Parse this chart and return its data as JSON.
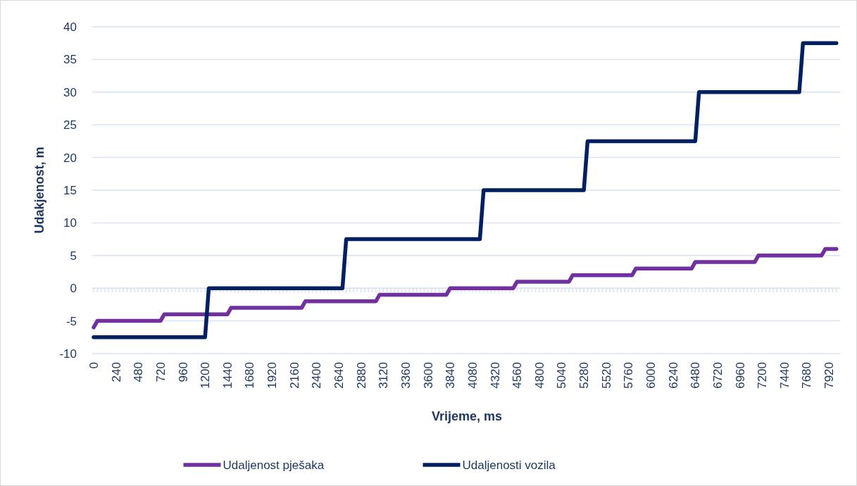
{
  "chart_data": {
    "type": "line",
    "xlabel": "Vrijeme, ms",
    "ylabel": "Udakjenost, m",
    "xlim": [
      0,
      8040
    ],
    "ylim": [
      -10,
      40
    ],
    "yticks": [
      -10,
      -5,
      0,
      5,
      10,
      15,
      20,
      25,
      30,
      35,
      40
    ],
    "xticks": [
      0,
      {
        "value": 40,
        "label": null
      },
      {
        "value": 80,
        "label": null
      },
      {
        "value": 120,
        "label": null
      },
      {
        "value": 160,
        "label": null
      },
      {
        "value": 200,
        "label": null
      },
      240,
      {
        "value": 280,
        "label": null
      },
      {
        "value": 320,
        "label": null
      },
      {
        "value": 360,
        "label": null
      },
      {
        "value": 400,
        "label": null
      },
      {
        "value": 440,
        "label": null
      },
      480,
      {
        "value": 520,
        "label": null
      },
      {
        "value": 560,
        "label": null
      },
      {
        "value": 600,
        "label": null
      },
      {
        "value": 640,
        "label": null
      },
      {
        "value": 680,
        "label": null
      },
      720,
      {
        "value": 760,
        "label": null
      },
      {
        "value": 800,
        "label": null
      },
      {
        "value": 840,
        "label": null
      },
      {
        "value": 880,
        "label": null
      },
      {
        "value": 920,
        "label": null
      },
      960,
      {
        "value": 1000,
        "label": null
      },
      {
        "value": 1040,
        "label": null
      },
      {
        "value": 1080,
        "label": null
      },
      {
        "value": 1120,
        "label": null
      },
      {
        "value": 1160,
        "label": null
      },
      1200,
      {
        "value": 1240,
        "label": null
      },
      {
        "value": 1280,
        "label": null
      },
      {
        "value": 1320,
        "label": null
      },
      {
        "value": 1360,
        "label": null
      },
      {
        "value": 1400,
        "label": null
      },
      1440,
      {
        "value": 1480,
        "label": null
      },
      {
        "value": 1520,
        "label": null
      },
      {
        "value": 1560,
        "label": null
      },
      {
        "value": 1600,
        "label": null
      },
      {
        "value": 1640,
        "label": null
      },
      1680,
      {
        "value": 1720,
        "label": null
      },
      {
        "value": 1760,
        "label": null
      },
      {
        "value": 1800,
        "label": null
      },
      {
        "value": 1840,
        "label": null
      },
      {
        "value": 1880,
        "label": null
      },
      1920,
      {
        "value": 1960,
        "label": null
      },
      {
        "value": 2000,
        "label": null
      },
      {
        "value": 2040,
        "label": null
      },
      {
        "value": 2080,
        "label": null
      },
      {
        "value": 2120,
        "label": null
      },
      2160,
      {
        "value": 2200,
        "label": null
      },
      {
        "value": 2240,
        "label": null
      },
      {
        "value": 2280,
        "label": null
      },
      {
        "value": 2320,
        "label": null
      },
      {
        "value": 2360,
        "label": null
      },
      2400,
      {
        "value": 2440,
        "label": null
      },
      {
        "value": 2480,
        "label": null
      },
      {
        "value": 2520,
        "label": null
      },
      {
        "value": 2560,
        "label": null
      },
      {
        "value": 2600,
        "label": null
      },
      2640,
      {
        "value": 2680,
        "label": null
      },
      {
        "value": 2720,
        "label": null
      },
      {
        "value": 2760,
        "label": null
      },
      {
        "value": 2800,
        "label": null
      },
      {
        "value": 2840,
        "label": null
      },
      2880,
      {
        "value": 2920,
        "label": null
      },
      {
        "value": 2960,
        "label": null
      },
      {
        "value": 3000,
        "label": null
      },
      {
        "value": 3040,
        "label": null
      },
      {
        "value": 3080,
        "label": null
      },
      3120,
      {
        "value": 3160,
        "label": null
      },
      {
        "value": 3200,
        "label": null
      },
      {
        "value": 3240,
        "label": null
      },
      {
        "value": 3280,
        "label": null
      },
      {
        "value": 3320,
        "label": null
      },
      3360,
      {
        "value": 3400,
        "label": null
      },
      {
        "value": 3440,
        "label": null
      },
      {
        "value": 3480,
        "label": null
      },
      {
        "value": 3520,
        "label": null
      },
      {
        "value": 3560,
        "label": null
      },
      3600,
      {
        "value": 3640,
        "label": null
      },
      {
        "value": 3680,
        "label": null
      },
      {
        "value": 3720,
        "label": null
      },
      {
        "value": 3760,
        "label": null
      },
      {
        "value": 3800,
        "label": null
      },
      3840,
      {
        "value": 3880,
        "label": null
      },
      {
        "value": 3920,
        "label": null
      },
      {
        "value": 3960,
        "label": null
      },
      {
        "value": 4000,
        "label": null
      },
      {
        "value": 4040,
        "label": null
      },
      4080,
      {
        "value": 4120,
        "label": null
      },
      {
        "value": 4160,
        "label": null
      },
      {
        "value": 4200,
        "label": null
      },
      {
        "value": 4240,
        "label": null
      },
      {
        "value": 4280,
        "label": null
      },
      4320,
      {
        "value": 4360,
        "label": null
      },
      {
        "value": 4400,
        "label": null
      },
      {
        "value": 4440,
        "label": null
      },
      {
        "value": 4480,
        "label": null
      },
      {
        "value": 4520,
        "label": null
      },
      4560,
      {
        "value": 4600,
        "label": null
      },
      {
        "value": 4640,
        "label": null
      },
      {
        "value": 4680,
        "label": null
      },
      {
        "value": 4720,
        "label": null
      },
      {
        "value": 4760,
        "label": null
      },
      4800,
      {
        "value": 4840,
        "label": null
      },
      {
        "value": 4880,
        "label": null
      },
      {
        "value": 4920,
        "label": null
      },
      {
        "value": 4960,
        "label": null
      },
      {
        "value": 5000,
        "label": null
      },
      5040,
      {
        "value": 5080,
        "label": null
      },
      {
        "value": 5120,
        "label": null
      },
      {
        "value": 5160,
        "label": null
      },
      {
        "value": 5200,
        "label": null
      },
      {
        "value": 5240,
        "label": null
      },
      5280,
      {
        "value": 5320,
        "label": null
      },
      {
        "value": 5360,
        "label": null
      },
      {
        "value": 5400,
        "label": null
      },
      {
        "value": 5440,
        "label": null
      },
      {
        "value": 5480,
        "label": null
      },
      5520,
      {
        "value": 5560,
        "label": null
      },
      {
        "value": 5600,
        "label": null
      },
      {
        "value": 5640,
        "label": null
      },
      {
        "value": 5680,
        "label": null
      },
      {
        "value": 5720,
        "label": null
      },
      5760,
      {
        "value": 5800,
        "label": null
      },
      {
        "value": 5840,
        "label": null
      },
      {
        "value": 5880,
        "label": null
      },
      {
        "value": 5920,
        "label": null
      },
      {
        "value": 5960,
        "label": null
      },
      6000,
      {
        "value": 6040,
        "label": null
      },
      {
        "value": 6080,
        "label": null
      },
      {
        "value": 6120,
        "label": null
      },
      {
        "value": 6160,
        "label": null
      },
      {
        "value": 6200,
        "label": null
      },
      6240,
      {
        "value": 6280,
        "label": null
      },
      {
        "value": 6320,
        "label": null
      },
      {
        "value": 6360,
        "label": null
      },
      {
        "value": 6400,
        "label": null
      },
      {
        "value": 6440,
        "label": null
      },
      6480,
      {
        "value": 6520,
        "label": null
      },
      {
        "value": 6560,
        "label": null
      },
      {
        "value": 6600,
        "label": null
      },
      {
        "value": 6640,
        "label": null
      },
      {
        "value": 6680,
        "label": null
      },
      6720,
      {
        "value": 6760,
        "label": null
      },
      {
        "value": 6800,
        "label": null
      },
      {
        "value": 6840,
        "label": null
      },
      {
        "value": 6880,
        "label": null
      },
      {
        "value": 6920,
        "label": null
      },
      6960,
      {
        "value": 7000,
        "label": null
      },
      {
        "value": 7040,
        "label": null
      },
      {
        "value": 7080,
        "label": null
      },
      {
        "value": 7120,
        "label": null
      },
      {
        "value": 7160,
        "label": null
      },
      7200,
      {
        "value": 7240,
        "label": null
      },
      {
        "value": 7280,
        "label": null
      },
      {
        "value": 7320,
        "label": null
      },
      {
        "value": 7360,
        "label": null
      },
      {
        "value": 7400,
        "label": null
      },
      7440,
      {
        "value": 7480,
        "label": null
      },
      {
        "value": 7520,
        "label": null
      },
      {
        "value": 7560,
        "label": null
      },
      {
        "value": 7600,
        "label": null
      },
      {
        "value": 7640,
        "label": null
      },
      7680,
      {
        "value": 7720,
        "label": null
      },
      {
        "value": 7760,
        "label": null
      },
      {
        "value": 7800,
        "label": null
      },
      {
        "value": 7840,
        "label": null
      },
      {
        "value": 7880,
        "label": null
      },
      7920,
      {
        "value": 7960,
        "label": null
      },
      {
        "value": 8000,
        "label": null
      }
    ],
    "grid": "y",
    "legend": "bottom",
    "line_style": "solid",
    "marker": "none",
    "series": [
      {
        "name": "Udaljenost pješaka",
        "color": "#7030a0",
        "x": [
          0,
          40,
          720,
          760,
          1440,
          1480,
          2240,
          2280,
          3040,
          3080,
          3800,
          3840,
          4520,
          4560,
          5120,
          5160,
          5800,
          5840,
          6440,
          6480,
          7120,
          7160,
          7840,
          7880,
          8000
        ],
        "values": [
          -6,
          -5,
          -5,
          -4,
          -4,
          -3,
          -3,
          -2,
          -2,
          -1,
          -1,
          0,
          0,
          1,
          1,
          2,
          2,
          3,
          3,
          4,
          4,
          5,
          5,
          6,
          6
        ]
      },
      {
        "name": "Udaljenosti vozila",
        "color": "#002060",
        "x": [
          0,
          1200,
          1240,
          2680,
          2720,
          4160,
          4200,
          5280,
          5320,
          6480,
          6520,
          7600,
          7640,
          8000
        ],
        "values": [
          -7.5,
          -7.5,
          0,
          0,
          7.5,
          7.5,
          15,
          15,
          22.5,
          22.5,
          30,
          30,
          37.5,
          37.5
        ]
      }
    ]
  }
}
